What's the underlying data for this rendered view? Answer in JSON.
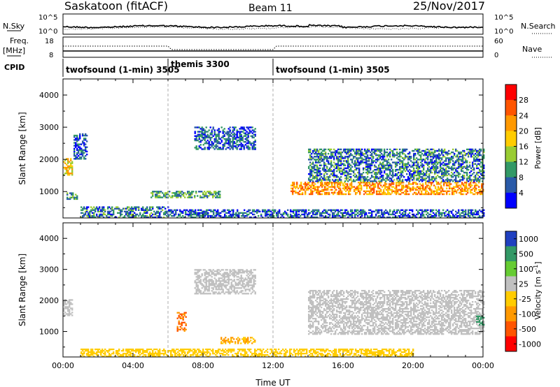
{
  "header": {
    "station": "Saskatoon (fitACF)",
    "beam": "Beam 11",
    "date": "25/Nov/2017"
  },
  "noise_panel": {
    "left_label": "N.Sky",
    "right_label": "N.Search",
    "left_ticks": [
      "10^5",
      "10^0"
    ],
    "right_ticks": [
      "10^5",
      "10^0"
    ]
  },
  "freq_panel": {
    "left_label_line1": "Freq.",
    "left_label_line2": "[MHz]",
    "right_label": "Nave",
    "left_ticks": [
      "18",
      "8"
    ],
    "right_ticks": [
      "60",
      "0"
    ]
  },
  "cpid": {
    "label": "CPID",
    "segments": [
      {
        "name": "twofsound (1-min) 3505",
        "start_hour": 0,
        "end_hour": 6
      },
      {
        "name": "themis 3300",
        "start_hour": 6,
        "end_hour": 12
      },
      {
        "name": "twofsound (1-min) 3505",
        "start_hour": 12,
        "end_hour": 24
      }
    ]
  },
  "power_colorbar": {
    "label": "Power [dB]",
    "ticks": [
      "28",
      "24",
      "20",
      "16",
      "12",
      "8",
      "4"
    ],
    "colors": [
      "#ff0000",
      "#ff5500",
      "#ff9900",
      "#ffcc00",
      "#99cc33",
      "#339966",
      "#2a5aa8",
      "#0000ff"
    ]
  },
  "velocity_colorbar": {
    "label": "Velocity [m s^-1]",
    "ticks": [
      "1000",
      "500",
      "100",
      "25",
      "-25",
      "-100",
      "-500",
      "-1000"
    ],
    "colors": [
      "#2040c0",
      "#339966",
      "#66cc33",
      "#c0c0c0",
      "#ffcc00",
      "#ff9900",
      "#ff5500",
      "#ff0000"
    ]
  },
  "chart_data": [
    {
      "type": "heatmap",
      "name": "power",
      "ylabel": "Slant Range [km]",
      "ylim": [
        180,
        4500
      ],
      "xlim_hours": [
        0,
        24
      ],
      "yticks": [
        1000,
        2000,
        3000,
        4000
      ],
      "ytick_labels": [
        "1000",
        "2000",
        "3000",
        "4000"
      ],
      "echo_regions": [
        {
          "x": [
            0,
            0.5
          ],
          "y": [
            1500,
            2000
          ],
          "power_db": 18
        },
        {
          "x": [
            0.6,
            1.4
          ],
          "y": [
            2000,
            2800
          ],
          "power_db": 6
        },
        {
          "x": [
            0.2,
            0.8
          ],
          "y": [
            750,
            950
          ],
          "power_db": 10
        },
        {
          "x": [
            1,
            6
          ],
          "y": [
            180,
            500
          ],
          "power_db": 8
        },
        {
          "x": [
            5,
            9
          ],
          "y": [
            800,
            1000
          ],
          "power_db": 10
        },
        {
          "x": [
            7.5,
            11
          ],
          "y": [
            2300,
            3000
          ],
          "power_db": 6
        },
        {
          "x": [
            13,
            24
          ],
          "y": [
            900,
            1300
          ],
          "power_db": 22
        },
        {
          "x": [
            14,
            24
          ],
          "y": [
            1300,
            2300
          ],
          "power_db": 8
        },
        {
          "x": [
            6,
            24
          ],
          "y": [
            180,
            450
          ],
          "power_db": 6
        }
      ]
    },
    {
      "type": "heatmap",
      "name": "velocity",
      "ylabel": "Slant Range [km]",
      "xlabel": "Time UT",
      "ylim": [
        180,
        4500
      ],
      "xlim_hours": [
        0,
        24
      ],
      "yticks": [
        1000,
        2000,
        3000,
        4000
      ],
      "ytick_labels": [
        "1000",
        "2000",
        "3000",
        "4000"
      ],
      "xtick_labels": [
        "00:00",
        "04:00",
        "08:00",
        "12:00",
        "16:00",
        "20:00",
        "00:00"
      ],
      "echo_regions": [
        {
          "x": [
            0,
            0.5
          ],
          "y": [
            1500,
            2000
          ],
          "velocity": 0
        },
        {
          "x": [
            14,
            24
          ],
          "y": [
            900,
            2300
          ],
          "velocity": 0
        },
        {
          "x": [
            9,
            11
          ],
          "y": [
            600,
            800
          ],
          "velocity": -100
        },
        {
          "x": [
            1,
            20
          ],
          "y": [
            180,
            450
          ],
          "velocity": -50
        },
        {
          "x": [
            6.5,
            7.0
          ],
          "y": [
            1000,
            1600
          ],
          "velocity": -500
        },
        {
          "x": [
            7.5,
            11
          ],
          "y": [
            2200,
            3000
          ],
          "velocity": 0
        },
        {
          "x": [
            23.6,
            24
          ],
          "y": [
            1200,
            1500
          ],
          "velocity": 150
        }
      ]
    }
  ]
}
